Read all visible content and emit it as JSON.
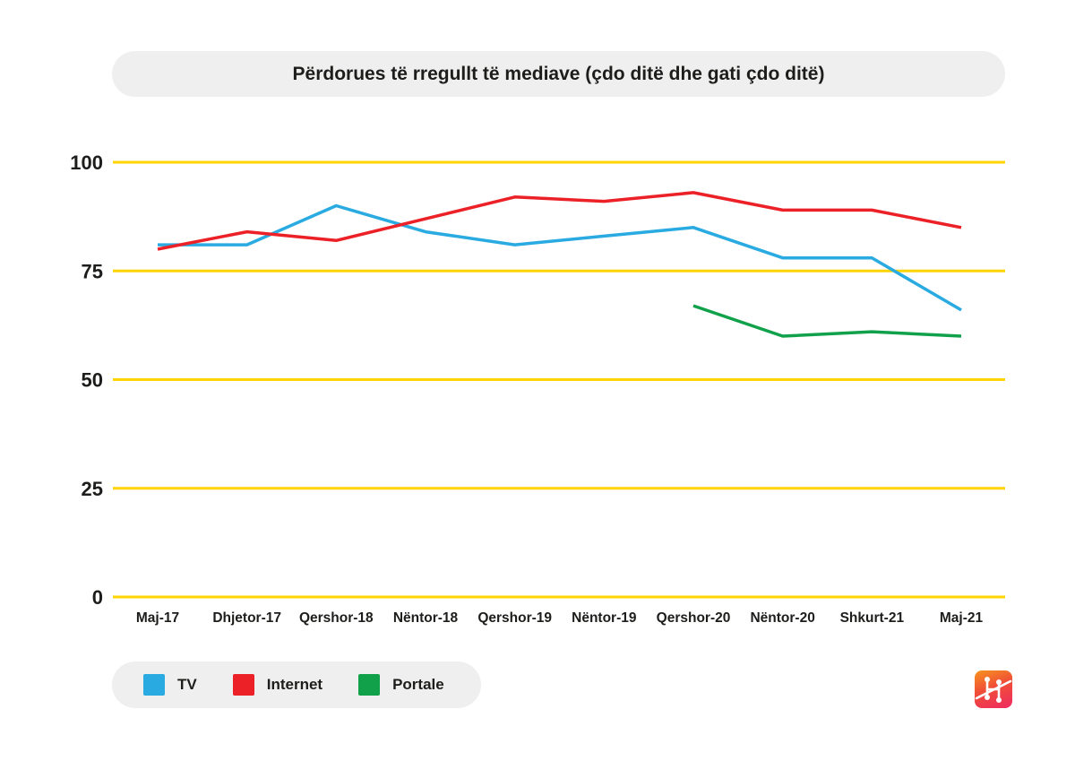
{
  "title": "Përdorues të rregullt të mediave (çdo ditë dhe gati çdo ditë)",
  "chart_data": {
    "type": "line",
    "categories": [
      "Maj-17",
      "Dhjetor-17",
      "Qershor-18",
      "Nëntor-18",
      "Qershor-19",
      "Nëntor-19",
      "Qershor-20",
      "Nëntor-20",
      "Shkurt-21",
      "Maj-21"
    ],
    "series": [
      {
        "name": "TV",
        "color": "#29abe2",
        "values": [
          81,
          81,
          90,
          84,
          81,
          83,
          85,
          78,
          78,
          66
        ]
      },
      {
        "name": "Internet",
        "color": "#ec2127",
        "values": [
          80,
          84,
          82,
          87,
          92,
          91,
          93,
          89,
          89,
          85
        ]
      },
      {
        "name": "Portale",
        "color": "#12a14b",
        "values": [
          null,
          null,
          null,
          null,
          null,
          null,
          67,
          60,
          61,
          60
        ]
      }
    ],
    "y_ticks": [
      0,
      25,
      50,
      75,
      100
    ],
    "ylim": [
      0,
      100
    ],
    "title": "Përdorues të rregullt të mediave (çdo ditë dhe gati çdo ditë)",
    "xlabel": "",
    "ylabel": "",
    "grid": "horizontal",
    "gridline_color": "#ffd400",
    "label_color": "#1d1d1b",
    "legend_position": "bottom-left"
  },
  "legend": {
    "items": [
      "TV",
      "Internet",
      "Portale"
    ]
  },
  "branding": {
    "logo_icon": "infographic-network-h-logo"
  }
}
